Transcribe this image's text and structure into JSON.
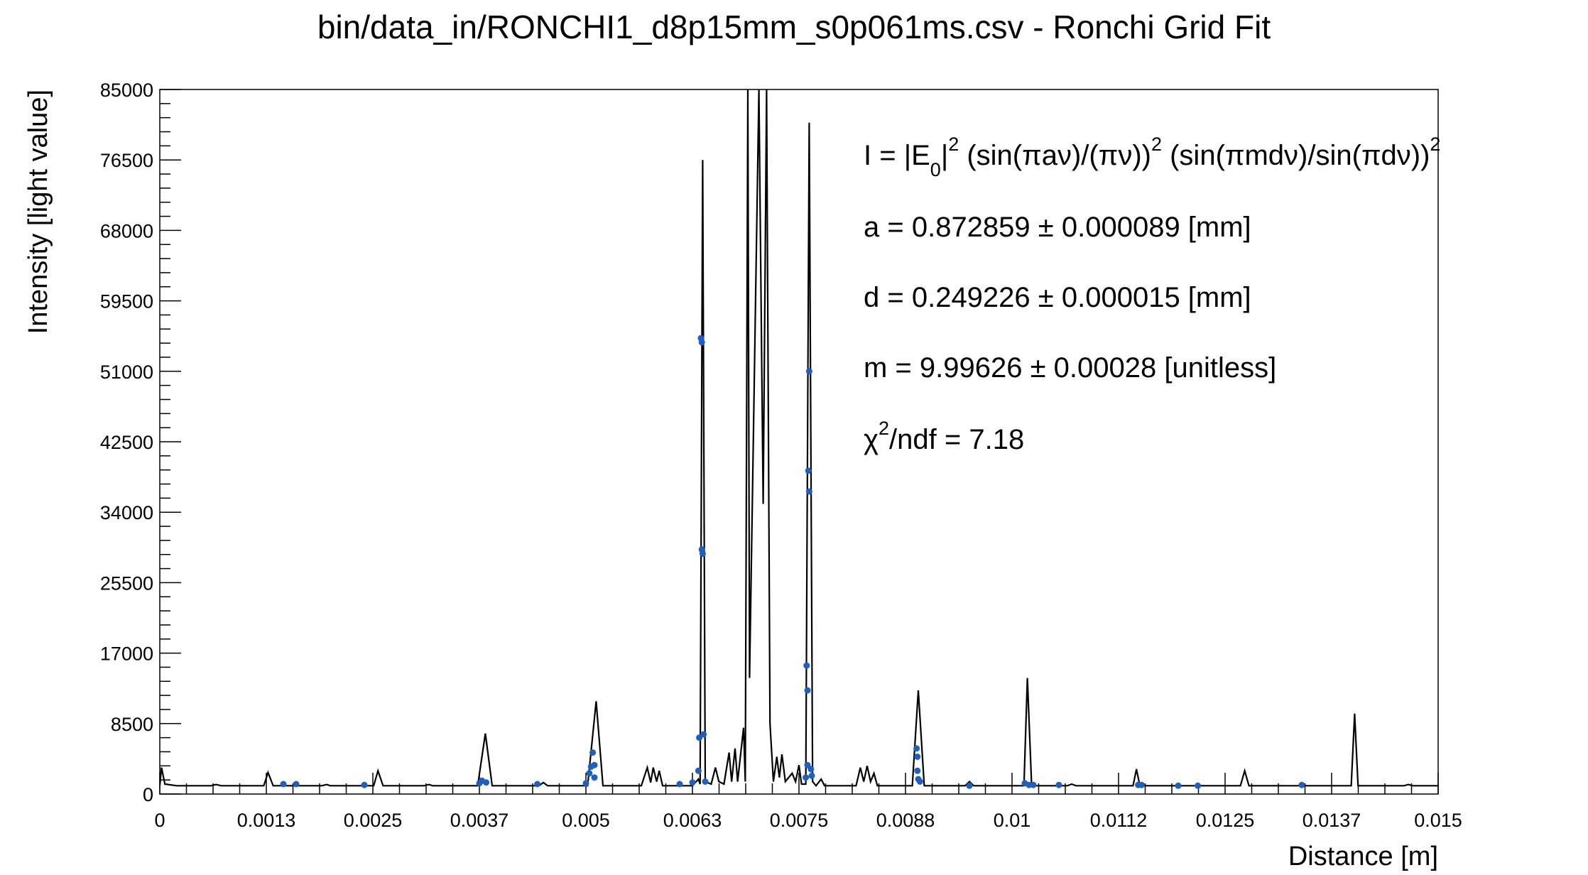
{
  "chart_data": {
    "type": "line",
    "title": "bin/data_in/RONCHI1_d8p15mm_s0p061ms.csv - Ronchi Grid Fit",
    "xlabel": "Distance [m]",
    "ylabel": "Intensity [light value]",
    "xlim": [
      0,
      0.015
    ],
    "ylim": [
      0,
      85000
    ],
    "x_ticks": [
      "0",
      "0.0013",
      "0.0025",
      "0.0037",
      "0.005",
      "0.0063",
      "0.0075",
      "0.0088",
      "0.01",
      "0.0112",
      "0.0125",
      "0.0137",
      "0.015"
    ],
    "y_ticks": [
      "0",
      "8500",
      "17000",
      "25500",
      "34000",
      "42500",
      "51000",
      "59500",
      "68000",
      "76500",
      "85000"
    ],
    "grid": false,
    "annotations": {
      "formula": {
        "p1": "I = |E",
        "sub0": "0",
        "p2": "|",
        "sup1": "2",
        "p3": " (sin(πaν)/(πν))",
        "sup2": "2",
        "p4": " (sin(πmdν)/sin(πdν))",
        "sup3": "2"
      },
      "a": "a = 0.872859 ± 0.000089 [mm]",
      "d": "d = 0.249226 ± 0.000015 [mm]",
      "m": "m = 9.99626 ± 0.00028 [unitless]",
      "chi": {
        "sym": "χ",
        "sup": "2",
        "rest": "/ndf = 7.18"
      }
    },
    "series": [
      {
        "style": "line",
        "color": "#000000",
        "points": [
          [
            0,
            1000
          ],
          [
            2e-05,
            3200
          ],
          [
            6e-05,
            1200
          ],
          [
            0.0002,
            1000
          ],
          [
            0.0006,
            1000
          ],
          [
            0.00066,
            1150
          ],
          [
            0.00072,
            1000
          ],
          [
            0.00122,
            1000
          ],
          [
            0.00127,
            2600
          ],
          [
            0.00133,
            1000
          ],
          [
            0.0019,
            1000
          ],
          [
            0.00196,
            1150
          ],
          [
            0.002,
            1000
          ],
          [
            0.00251,
            1000
          ],
          [
            0.00256,
            2800
          ],
          [
            0.00262,
            1000
          ],
          [
            0.0031,
            1000
          ],
          [
            0.00316,
            1150
          ],
          [
            0.0032,
            1000
          ],
          [
            0.00373,
            1000
          ],
          [
            0.00382,
            7300
          ],
          [
            0.0039,
            1000
          ],
          [
            0.00445,
            1000
          ],
          [
            0.0045,
            1400
          ],
          [
            0.00455,
            1000
          ],
          [
            0.00502,
            1000
          ],
          [
            0.00512,
            11200
          ],
          [
            0.0052,
            1000
          ],
          [
            0.00565,
            1000
          ],
          [
            0.00572,
            3200
          ],
          [
            0.00576,
            1400
          ],
          [
            0.00579,
            3200
          ],
          [
            0.00583,
            1500
          ],
          [
            0.00586,
            2800
          ],
          [
            0.0059,
            1000
          ],
          [
            0.00625,
            1000
          ],
          [
            0.00632,
            1800
          ],
          [
            0.00634,
            1200
          ],
          [
            0.00637,
            76500
          ],
          [
            0.0064,
            1500
          ],
          [
            0.00647,
            1200
          ],
          [
            0.00652,
            3200
          ],
          [
            0.00656,
            1500
          ],
          [
            0.00662,
            1200
          ],
          [
            0.00668,
            5000
          ],
          [
            0.00671,
            1500
          ],
          [
            0.00675,
            5500
          ],
          [
            0.00678,
            1500
          ],
          [
            0.00685,
            8000
          ],
          [
            0.00687,
            1500
          ],
          [
            0.0069,
            85000
          ],
          [
            0.00692,
            14000
          ],
          [
            0.00703,
            85000
          ],
          [
            0.00708,
            35000
          ],
          [
            0.00712,
            85000
          ],
          [
            0.00716,
            8500
          ],
          [
            0.0072,
            1500
          ],
          [
            0.00724,
            4500
          ],
          [
            0.00727,
            2000
          ],
          [
            0.0073,
            4800
          ],
          [
            0.00734,
            1500
          ],
          [
            0.00742,
            2500
          ],
          [
            0.00746,
            1500
          ],
          [
            0.0075,
            3500
          ],
          [
            0.00753,
            1200
          ],
          [
            0.00758,
            1200
          ],
          [
            0.00762,
            81000
          ],
          [
            0.00766,
            1500
          ],
          [
            0.0077,
            1000
          ],
          [
            0.00776,
            1800
          ],
          [
            0.0078,
            1000
          ],
          [
            0.00817,
            1000
          ],
          [
            0.00822,
            3200
          ],
          [
            0.00826,
            1500
          ],
          [
            0.0083,
            3400
          ],
          [
            0.00834,
            1500
          ],
          [
            0.00838,
            2500
          ],
          [
            0.00842,
            1000
          ],
          [
            0.00883,
            1000
          ],
          [
            0.0089,
            12500
          ],
          [
            0.00897,
            1000
          ],
          [
            0.00945,
            1000
          ],
          [
            0.0095,
            1500
          ],
          [
            0.00955,
            1000
          ],
          [
            0.01014,
            1000
          ],
          [
            0.01018,
            14000
          ],
          [
            0.01023,
            1000
          ],
          [
            0.01065,
            1000
          ],
          [
            0.0107,
            1200
          ],
          [
            0.01075,
            1000
          ],
          [
            0.01142,
            1000
          ],
          [
            0.01146,
            3000
          ],
          [
            0.0115,
            1000
          ],
          [
            0.01268,
            1000
          ],
          [
            0.01273,
            2800
          ],
          [
            0.01278,
            1000
          ],
          [
            0.01398,
            1000
          ],
          [
            0.01402,
            9700
          ],
          [
            0.01406,
            1000
          ],
          [
            0.0146,
            1000
          ],
          [
            0.01465,
            1150
          ],
          [
            0.0147,
            1000
          ],
          [
            0.015,
            1000
          ]
        ]
      },
      {
        "style": "markers",
        "color": "#1f5fbf",
        "points": [
          [
            0.00145,
            1200
          ],
          [
            0.0016,
            1200
          ],
          [
            0.0024,
            1100
          ],
          [
            0.00375,
            1300
          ],
          [
            0.00378,
            1600
          ],
          [
            0.00383,
            1400
          ],
          [
            0.00443,
            1200
          ],
          [
            0.005,
            1300
          ],
          [
            0.00504,
            2500
          ],
          [
            0.00506,
            3300
          ],
          [
            0.00508,
            5000
          ],
          [
            0.0051,
            3500
          ],
          [
            0.0051,
            2000
          ],
          [
            0.0061,
            1200
          ],
          [
            0.00625,
            1400
          ],
          [
            0.00632,
            2800
          ],
          [
            0.00633,
            6800
          ],
          [
            0.00635,
            55000
          ],
          [
            0.00636,
            54500
          ],
          [
            0.00636,
            29500
          ],
          [
            0.00637,
            29000
          ],
          [
            0.00638,
            7200
          ],
          [
            0.0064,
            1500
          ],
          [
            0.00758,
            2000
          ],
          [
            0.00759,
            15500
          ],
          [
            0.0076,
            12500
          ],
          [
            0.0076,
            3500
          ],
          [
            0.00761,
            39000
          ],
          [
            0.00762,
            36500
          ],
          [
            0.00762,
            51000
          ],
          [
            0.00764,
            3000
          ],
          [
            0.00765,
            2200
          ],
          [
            0.00888,
            5500
          ],
          [
            0.00889,
            4500
          ],
          [
            0.00889,
            2800
          ],
          [
            0.0089,
            1800
          ],
          [
            0.00892,
            1500
          ],
          [
            0.0095,
            1000
          ],
          [
            0.01015,
            1300
          ],
          [
            0.0102,
            1100
          ],
          [
            0.01025,
            1100
          ],
          [
            0.01055,
            1100
          ],
          [
            0.01148,
            1100
          ],
          [
            0.01152,
            1100
          ],
          [
            0.01195,
            1000
          ],
          [
            0.01218,
            1000
          ],
          [
            0.0134,
            1100
          ]
        ]
      }
    ]
  }
}
